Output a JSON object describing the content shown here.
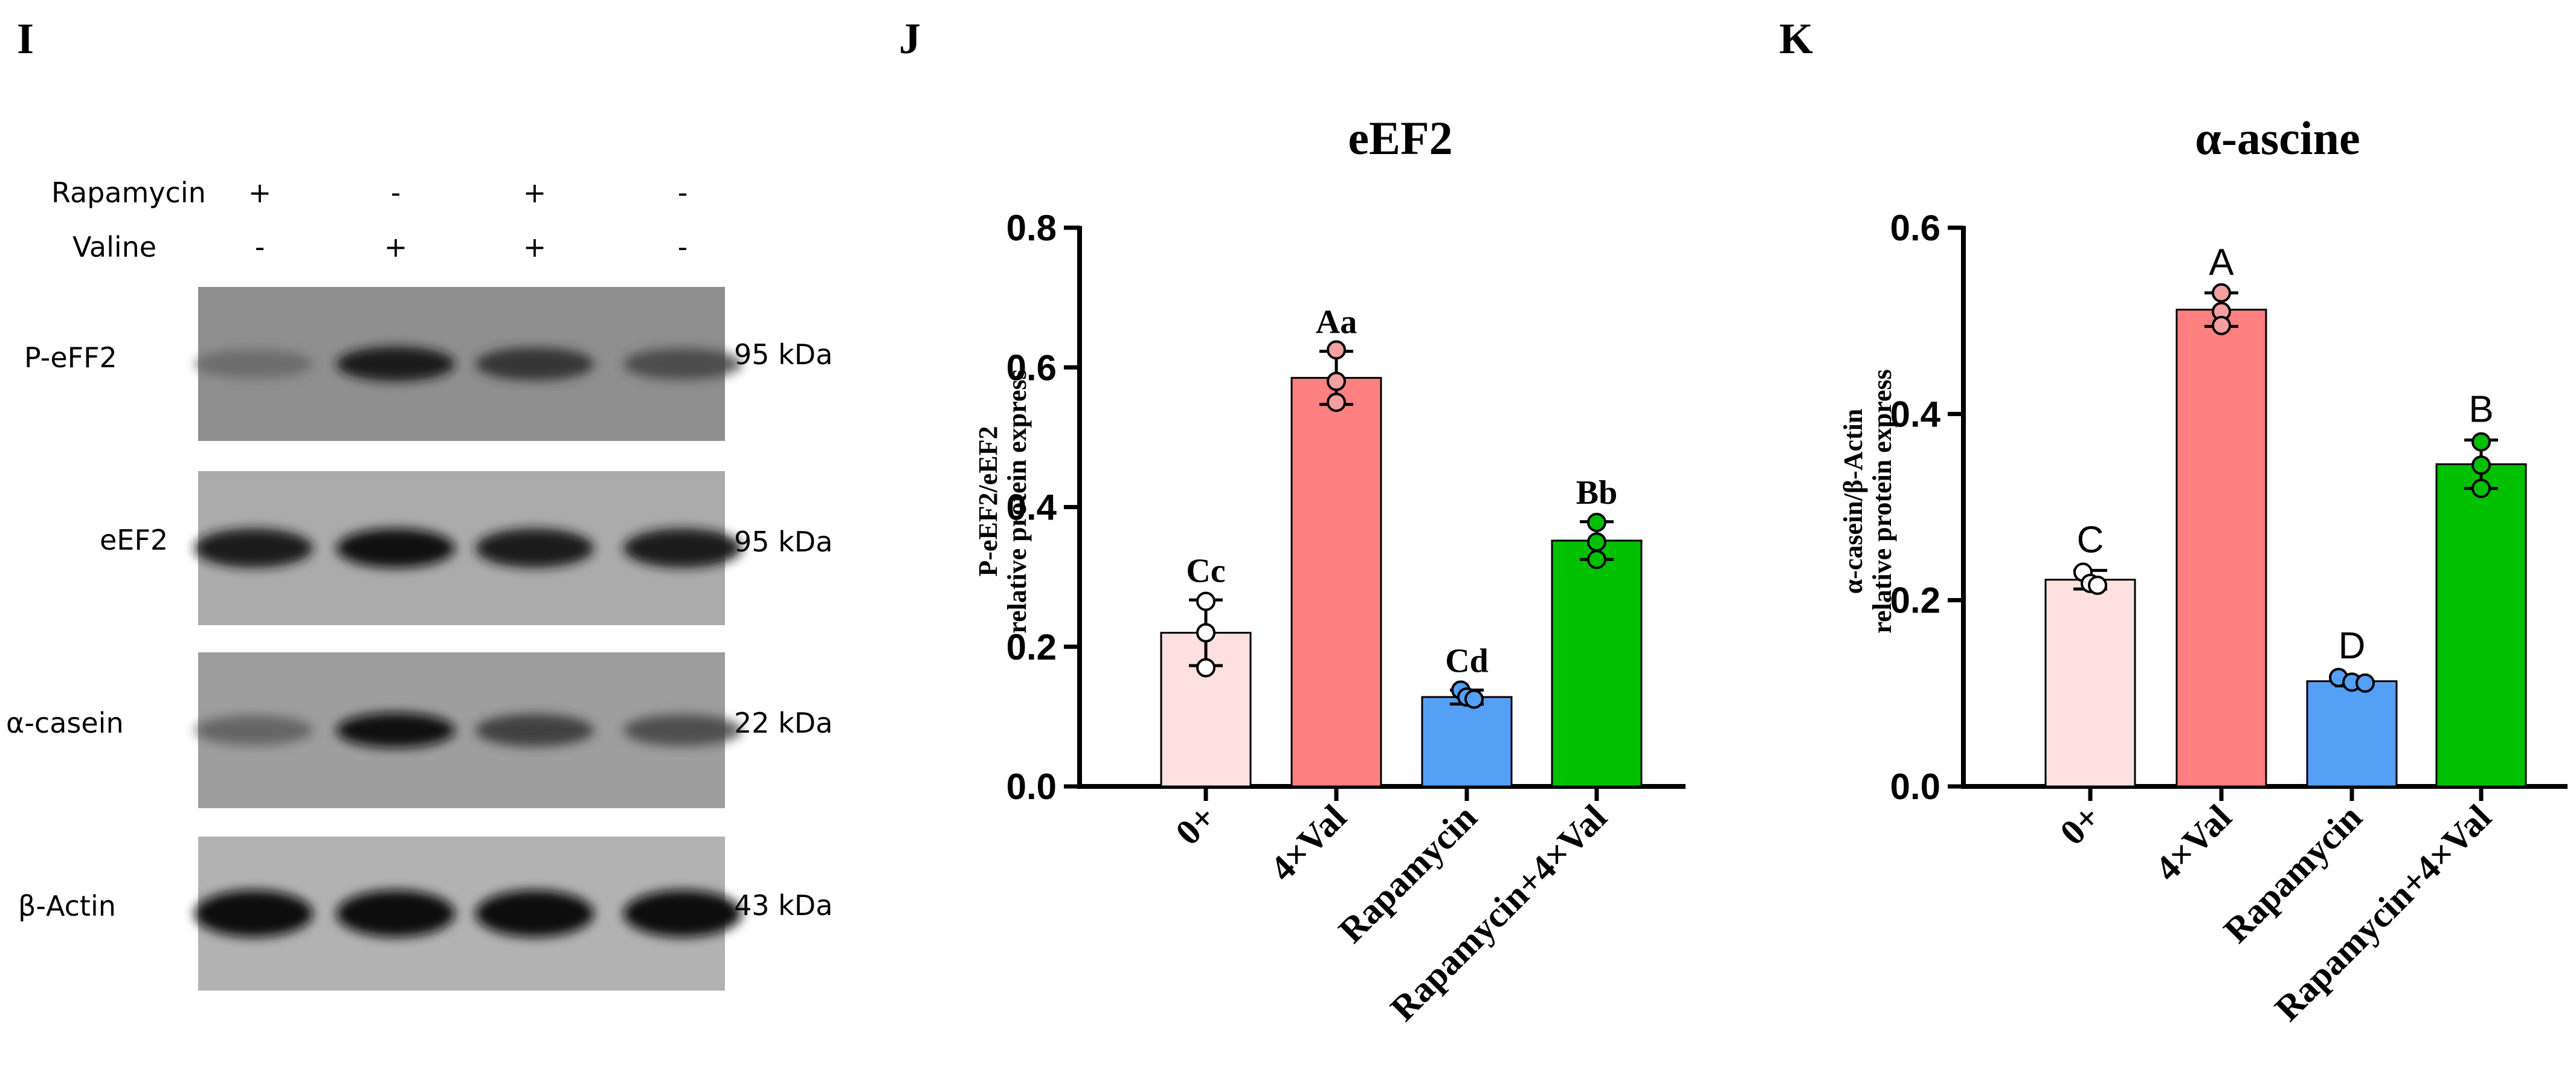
{
  "panels": {
    "I": "I",
    "J": "J",
    "K": "K"
  },
  "western_blot": {
    "treatments": [
      {
        "name": "Rapamycin",
        "signs": [
          "+",
          "-",
          "+",
          "-"
        ]
      },
      {
        "name": "Valine",
        "signs": [
          "-",
          "+",
          "+",
          "-"
        ]
      }
    ],
    "rows": [
      {
        "name": "P-eFF2",
        "kda": "95 kDa",
        "intensity": [
          0.35,
          0.9,
          0.75,
          0.6
        ],
        "band_height": 0.8
      },
      {
        "name": "eEF2",
        "kda": "95 kDa",
        "intensity": [
          0.92,
          0.95,
          0.92,
          0.92
        ],
        "band_height": 1.0
      },
      {
        "name": "α-casein",
        "kda": "22 kDa",
        "intensity": [
          0.45,
          0.95,
          0.7,
          0.6
        ],
        "band_height": 0.8
      },
      {
        "name": "β-Actin",
        "kda": "43 kDa",
        "intensity": [
          1.0,
          1.0,
          1.0,
          1.0
        ],
        "band_height": 1.3
      }
    ]
  },
  "chart_data": [
    {
      "type": "bar",
      "title": "eEF2",
      "ylabel_line1": "P-eEF2/eEF2",
      "ylabel_line2": "relative protein express",
      "xlabel": "",
      "ylim": [
        0,
        0.8
      ],
      "yticks": [
        "0.0",
        "0.2",
        "0.4",
        "0.6",
        "0.8"
      ],
      "ytick_values": [
        0,
        0.2,
        0.4,
        0.6,
        0.8
      ],
      "categories": [
        "0+",
        "4×Val",
        "Rapamycin",
        "Rapamycin+4×Val"
      ],
      "values": [
        0.22,
        0.585,
        0.128,
        0.352
      ],
      "error": [
        0.047,
        0.038,
        0.01,
        0.027
      ],
      "points": [
        [
          0.265,
          0.22,
          0.17
        ],
        [
          0.625,
          0.58,
          0.55
        ],
        [
          0.138,
          0.128,
          0.125
        ],
        [
          0.378,
          0.35,
          0.325
        ]
      ],
      "letters": [
        "Cc",
        "Aa",
        "Cd",
        "Bb"
      ],
      "bar_colors": [
        "#fde0e0",
        "#ff8080",
        "#55a0f7",
        "#00c000"
      ],
      "point_colors": [
        "#ffffff",
        "#f4a0a0",
        "#55a0f7",
        "#00c000"
      ]
    },
    {
      "type": "bar",
      "title": "α-ascine",
      "ylabel_line1": "α-casein/β-Actin",
      "ylabel_line2": "relative protein express",
      "xlabel": "",
      "ylim": [
        0,
        0.6
      ],
      "yticks": [
        "0.0",
        "0.2",
        "0.4",
        "0.6"
      ],
      "ytick_values": [
        0,
        0.2,
        0.4,
        0.6
      ],
      "categories": [
        "0+",
        "4×Val",
        "Rapamycin",
        "Rapamycin+4×Val"
      ],
      "values": [
        0.222,
        0.512,
        0.113,
        0.346
      ],
      "error": [
        0.01,
        0.018,
        0.005,
        0.026
      ],
      "points": [
        [
          0.23,
          0.218,
          0.216
        ],
        [
          0.53,
          0.51,
          0.495
        ],
        [
          0.117,
          0.112,
          0.111
        ],
        [
          0.37,
          0.345,
          0.32
        ]
      ],
      "letters": [
        "C",
        "A",
        "D",
        "B"
      ],
      "bar_colors": [
        "#fde0e0",
        "#ff8080",
        "#55a0f7",
        "#00c000"
      ],
      "point_colors": [
        "#ffffff",
        "#f4a0a0",
        "#55a0f7",
        "#00c000"
      ]
    }
  ]
}
